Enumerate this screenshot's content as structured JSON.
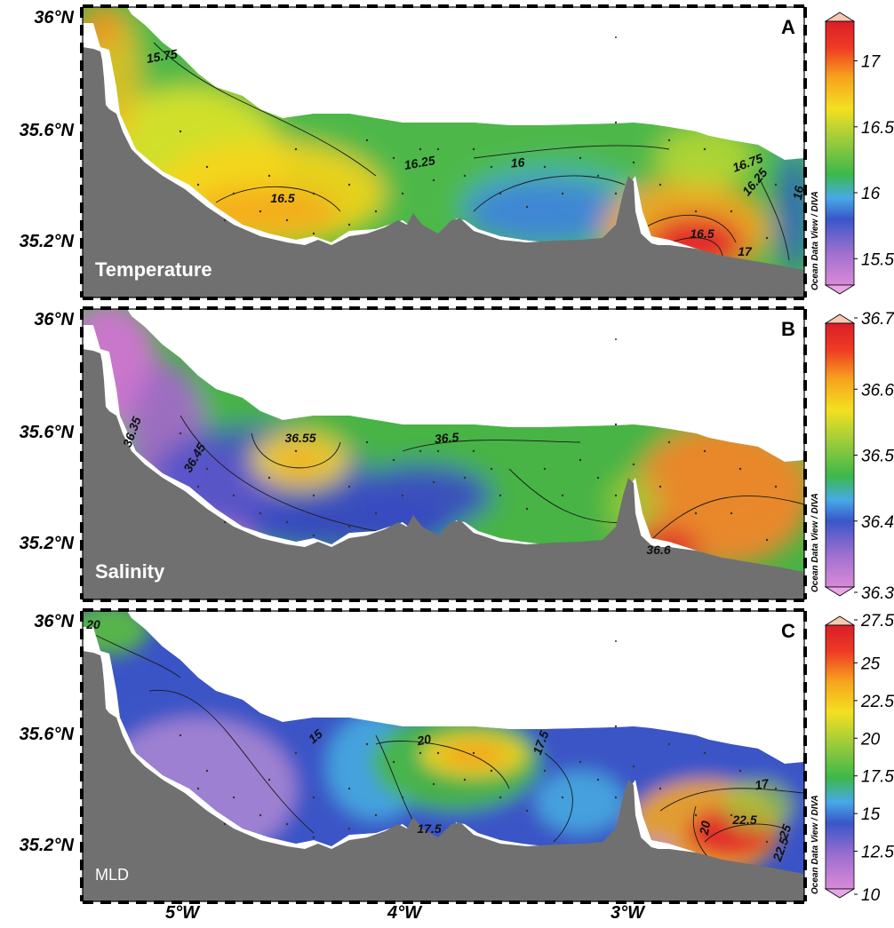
{
  "chart_data": [
    {
      "panel_letter": "A",
      "variable_label": "Temperature",
      "type": "heatmap",
      "xlim": [
        -5.45,
        -2.2
      ],
      "ylim": [
        35.0,
        36.05
      ],
      "y_ticks": [
        "36°N",
        "35.6°N",
        "35.2°N"
      ],
      "colorbar": {
        "min": 15.3,
        "max": 17.3,
        "ticks": [
          "17",
          "16.5",
          "16",
          "15.5"
        ],
        "ext_top": "17.3",
        "ext_bottom": "15.3"
      },
      "colorbar_title": "Ocean Data View / DIVA",
      "contour_labels": [
        "16.25",
        "16",
        "16.5",
        "16.5",
        "17",
        "16.75",
        "16",
        "15.75",
        "16.25"
      ]
    },
    {
      "panel_letter": "B",
      "variable_label": "Salinity",
      "type": "heatmap",
      "xlim": [
        -5.45,
        -2.2
      ],
      "ylim": [
        35.0,
        36.05
      ],
      "y_ticks": [
        "36°N",
        "35.6°N",
        "35.2°N"
      ],
      "colorbar": {
        "min": 36.3,
        "max": 36.7,
        "ticks": [
          "36.7",
          "36.6",
          "36.5",
          "36.4",
          "36.3"
        ]
      },
      "colorbar_title": "Ocean Data View / DIVA",
      "contour_labels": [
        "36.35",
        "36.45",
        "36.55",
        "36.5",
        "36.6"
      ]
    },
    {
      "panel_letter": "C",
      "variable_label": "MLD",
      "type": "heatmap",
      "xlim": [
        -5.45,
        -2.2
      ],
      "ylim": [
        35.0,
        36.05
      ],
      "y_ticks": [
        "36°N",
        "35.6°N",
        "35.2°N"
      ],
      "colorbar": {
        "min": 10,
        "max": 27.5,
        "ticks": [
          "27.5",
          "25",
          "22.5",
          "20",
          "17.5",
          "15",
          "12.5",
          "10"
        ]
      },
      "colorbar_title": "Ocean Data View / DIVA",
      "contour_labels": [
        "20",
        "15",
        "20",
        "17.5",
        "17.5",
        "17",
        "22.5",
        "20",
        "25",
        "22.5"
      ]
    }
  ],
  "x_ticks": [
    "5°W",
    "4°W",
    "3°W"
  ],
  "colors": {
    "land": "#707070",
    "frame": "#000000",
    "background": "#ffffff",
    "station": "#333333"
  }
}
